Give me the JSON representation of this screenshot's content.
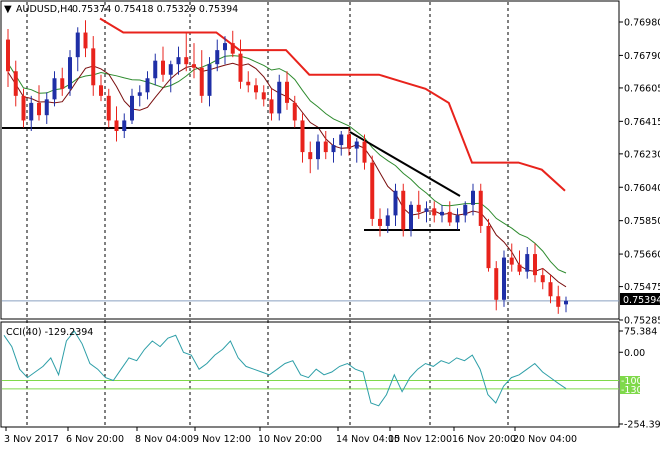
{
  "main_panel": {
    "symbol_label": "AUDUSD,H4",
    "ohlc": "0.75374 0.75418 0.75329 0.75394",
    "price_ticks": [
      "0.76980",
      "0.76790",
      "0.76605",
      "0.76415",
      "0.76230",
      "0.76040",
      "0.75850",
      "0.75660",
      "0.75475",
      "0.75285"
    ],
    "current_price": "0.75394"
  },
  "cci_panel": {
    "label": "CCI(40) -129.2394",
    "ticks": [
      "75.384",
      "0.00",
      "-254.3985"
    ],
    "level_labels": [
      "-100",
      "-130"
    ]
  },
  "time_axis": [
    "3 Nov 2017",
    "6 Nov 20:00",
    "8 Nov 04:00",
    "9 Nov 12:00",
    "10 Nov 20:00",
    "14 Nov 04:00",
    "15 Nov 12:00",
    "16 Nov 20:00",
    "20 Nov 04:00"
  ],
  "colors": {
    "bull": "#1f2fa6",
    "bear": "#e8231c",
    "red_line": "#e8231c",
    "ma_dark": "#7a0f0f",
    "ma_green": "#2e8b2e",
    "cci_line": "#2e9fa8",
    "cci_level": "#7fd94a",
    "axis": "#000000"
  },
  "chart_data": {
    "type": "candlestick",
    "candles": [
      [
        0.7688,
        0.7694,
        0.7661,
        0.767
      ],
      [
        0.767,
        0.7676,
        0.765,
        0.7656
      ],
      [
        0.7656,
        0.766,
        0.7638,
        0.7642
      ],
      [
        0.7642,
        0.7656,
        0.7636,
        0.7652
      ],
      [
        0.7652,
        0.7662,
        0.7642,
        0.7645
      ],
      [
        0.7645,
        0.7658,
        0.764,
        0.7654
      ],
      [
        0.7654,
        0.767,
        0.765,
        0.7666
      ],
      [
        0.7666,
        0.7672,
        0.7656,
        0.766
      ],
      [
        0.766,
        0.7682,
        0.7656,
        0.7678
      ],
      [
        0.7678,
        0.7695,
        0.767,
        0.7692
      ],
      [
        0.7692,
        0.7699,
        0.7678,
        0.7683
      ],
      [
        0.7683,
        0.769,
        0.7656,
        0.7662
      ],
      [
        0.7662,
        0.7668,
        0.7653,
        0.7656
      ],
      [
        0.7656,
        0.766,
        0.7638,
        0.7642
      ],
      [
        0.7642,
        0.765,
        0.763,
        0.7636
      ],
      [
        0.7636,
        0.7646,
        0.7632,
        0.7642
      ],
      [
        0.7642,
        0.766,
        0.764,
        0.7656
      ],
      [
        0.7656,
        0.7662,
        0.765,
        0.7658
      ],
      [
        0.7658,
        0.767,
        0.7654,
        0.7666
      ],
      [
        0.7666,
        0.768,
        0.7662,
        0.7676
      ],
      [
        0.7676,
        0.7684,
        0.7664,
        0.7668
      ],
      [
        0.7668,
        0.7676,
        0.7658,
        0.7674
      ],
      [
        0.7674,
        0.7684,
        0.7668,
        0.7678
      ],
      [
        0.7678,
        0.7692,
        0.767,
        0.7674
      ],
      [
        0.7674,
        0.7686,
        0.7666,
        0.7672
      ],
      [
        0.7672,
        0.7682,
        0.7652,
        0.7656
      ],
      [
        0.7656,
        0.7678,
        0.765,
        0.7674
      ],
      [
        0.7674,
        0.7688,
        0.767,
        0.7682
      ],
      [
        0.7682,
        0.769,
        0.7674,
        0.7686
      ],
      [
        0.7686,
        0.7693,
        0.7678,
        0.768
      ],
      [
        0.768,
        0.7688,
        0.766,
        0.7664
      ],
      [
        0.7664,
        0.767,
        0.7658,
        0.7662
      ],
      [
        0.7662,
        0.7666,
        0.7654,
        0.7658
      ],
      [
        0.7658,
        0.7662,
        0.765,
        0.7654
      ],
      [
        0.7654,
        0.766,
        0.7642,
        0.7646
      ],
      [
        0.7646,
        0.7668,
        0.7642,
        0.7664
      ],
      [
        0.7664,
        0.767,
        0.7648,
        0.7652
      ],
      [
        0.7652,
        0.7656,
        0.7638,
        0.7642
      ],
      [
        0.7642,
        0.7646,
        0.7618,
        0.7624
      ],
      [
        0.7624,
        0.763,
        0.7612,
        0.762
      ],
      [
        0.762,
        0.7634,
        0.7614,
        0.763
      ],
      [
        0.763,
        0.7636,
        0.762,
        0.7624
      ],
      [
        0.7624,
        0.7632,
        0.7618,
        0.7628
      ],
      [
        0.7628,
        0.7636,
        0.7622,
        0.7634
      ],
      [
        0.7634,
        0.7638,
        0.7622,
        0.7626
      ],
      [
        0.7626,
        0.7632,
        0.7618,
        0.763
      ],
      [
        0.763,
        0.7634,
        0.7614,
        0.7618
      ],
      [
        0.7618,
        0.7622,
        0.7582,
        0.7586
      ],
      [
        0.7586,
        0.7592,
        0.7576,
        0.7582
      ],
      [
        0.7582,
        0.7592,
        0.7578,
        0.7588
      ],
      [
        0.7588,
        0.7606,
        0.7582,
        0.7602
      ],
      [
        0.7602,
        0.7606,
        0.7576,
        0.758
      ],
      [
        0.758,
        0.7596,
        0.7576,
        0.7594
      ],
      [
        0.7594,
        0.7602,
        0.7586,
        0.759
      ],
      [
        0.759,
        0.7596,
        0.7584,
        0.7592
      ],
      [
        0.7592,
        0.7596,
        0.7584,
        0.7588
      ],
      [
        0.7588,
        0.7594,
        0.7584,
        0.759
      ],
      [
        0.759,
        0.7596,
        0.7582,
        0.7584
      ],
      [
        0.7584,
        0.7592,
        0.758,
        0.7588
      ],
      [
        0.7588,
        0.7596,
        0.7584,
        0.7594
      ],
      [
        0.7594,
        0.7606,
        0.7588,
        0.7602
      ],
      [
        0.7602,
        0.7606,
        0.7578,
        0.7582
      ],
      [
        0.7582,
        0.7586,
        0.7556,
        0.7558
      ],
      [
        0.7558,
        0.7562,
        0.7534,
        0.754
      ],
      [
        0.754,
        0.7568,
        0.7536,
        0.7564
      ],
      [
        0.7564,
        0.7572,
        0.7556,
        0.756
      ],
      [
        0.756,
        0.7568,
        0.7554,
        0.7556
      ],
      [
        0.7556,
        0.757,
        0.7552,
        0.7566
      ],
      [
        0.7566,
        0.7572,
        0.755,
        0.7554
      ],
      [
        0.7554,
        0.7558,
        0.7546,
        0.755
      ],
      [
        0.755,
        0.7554,
        0.7538,
        0.7542
      ],
      [
        0.7542,
        0.7548,
        0.7532,
        0.7536
      ],
      [
        0.75374,
        0.75418,
        0.75329,
        0.75394
      ]
    ],
    "red_stepline": [
      0.77,
      0.7692,
      0.7692,
      0.7692,
      0.7692,
      0.7692,
      0.7682,
      0.7682,
      0.7682,
      0.7668,
      0.7668,
      0.7668,
      0.7668,
      0.7664,
      0.766,
      0.7652,
      0.7618,
      0.7618,
      0.7618,
      0.7614,
      0.7602
    ],
    "cci_values": [
      60,
      20,
      -60,
      -90,
      -70,
      -50,
      -20,
      -80,
      40,
      75,
      30,
      -40,
      -60,
      -90,
      -100,
      -60,
      -20,
      -30,
      10,
      40,
      20,
      50,
      60,
      0,
      -10,
      -60,
      -40,
      -10,
      10,
      40,
      -20,
      -50,
      -60,
      -70,
      -80,
      -60,
      -40,
      -30,
      -80,
      -90,
      -60,
      -80,
      -70,
      -50,
      -40,
      -60,
      -70,
      -180,
      -190,
      -150,
      -80,
      -140,
      -90,
      -60,
      -40,
      -50,
      -30,
      -40,
      -20,
      -30,
      -10,
      -60,
      -150,
      -180,
      -120,
      -90,
      -80,
      -60,
      -40,
      -70,
      -90,
      -110,
      -129
    ],
    "cci_levels": [
      -100,
      -130
    ]
  }
}
